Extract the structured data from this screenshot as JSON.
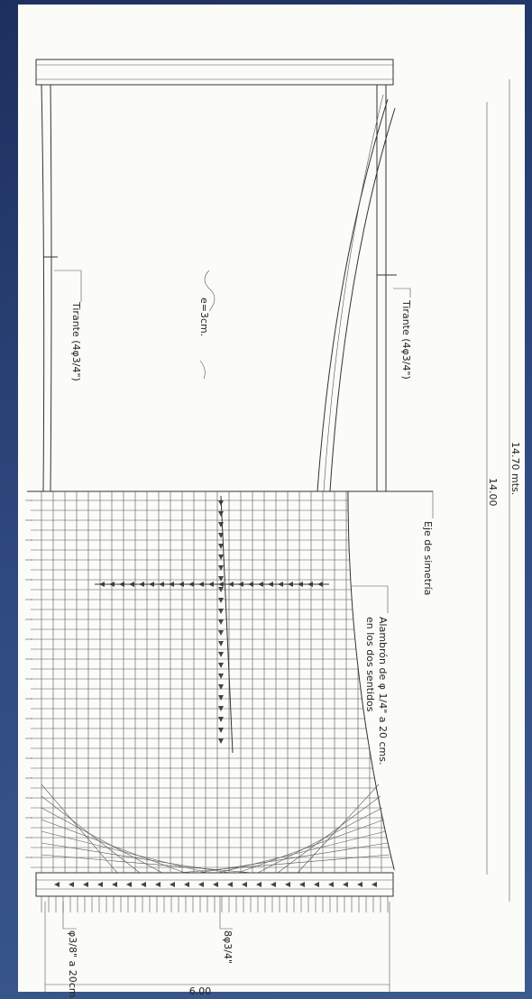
{
  "labels": {
    "tie_left": "Tirante (4φ3/4\")",
    "tie_right": "Tirante (4φ3/4\")",
    "thickness": "e=3cm.",
    "axis": "Eje de simetría",
    "mesh_1": "Alambrón de φ 1/4\" a 20 cms.",
    "mesh_2": "en los dos sentidos",
    "total_length": "14.70 mts.",
    "inner_length": "14.00",
    "bottom_bars": "8φ3/4\"",
    "stirrups": "φ3/8\" a 20cm.",
    "width": "6.00"
  }
}
